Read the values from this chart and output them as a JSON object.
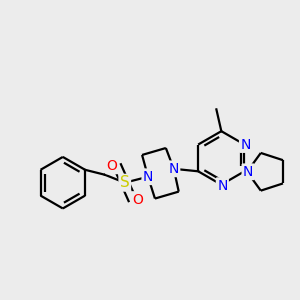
{
  "background_color": "#ececec",
  "bond_color": "#000000",
  "atom_colors": {
    "N": "#0000ff",
    "S": "#cccc00",
    "O": "#ff0000",
    "C": "#000000"
  },
  "figsize": [
    3.0,
    3.0
  ],
  "dpi": 100
}
